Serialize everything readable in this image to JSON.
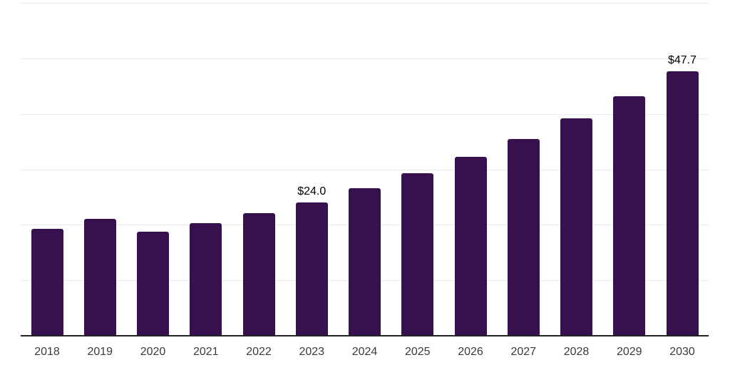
{
  "chart_data": {
    "type": "bar",
    "title": "",
    "xlabel": "",
    "ylabel": "",
    "categories": [
      "2018",
      "2019",
      "2020",
      "2021",
      "2022",
      "2023",
      "2024",
      "2025",
      "2026",
      "2027",
      "2028",
      "2029",
      "2030"
    ],
    "values": [
      19.3,
      21.1,
      18.8,
      20.3,
      22.1,
      24.0,
      26.6,
      29.3,
      32.2,
      35.4,
      39.2,
      43.2,
      47.7
    ],
    "data_labels": [
      null,
      null,
      null,
      null,
      null,
      "$24.0",
      null,
      null,
      null,
      null,
      null,
      null,
      "$47.7"
    ],
    "ylim": [
      0,
      60
    ],
    "grid_step": 10,
    "grid": true,
    "legend": false,
    "colors": {
      "bar": "#37114E",
      "axis": "#222222",
      "gridline": "#ececec",
      "tick_label": "#3a3a3a",
      "data_label": "#000000",
      "background": "#ffffff"
    }
  }
}
